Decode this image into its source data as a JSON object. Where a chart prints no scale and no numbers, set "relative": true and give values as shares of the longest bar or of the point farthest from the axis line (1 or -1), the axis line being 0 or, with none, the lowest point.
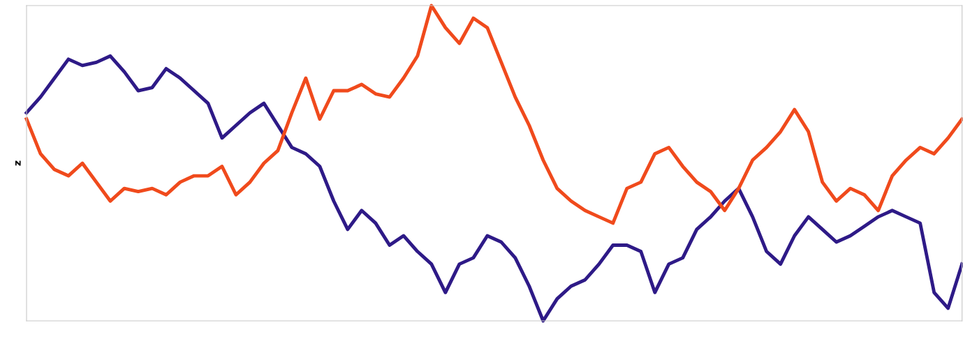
{
  "chart_data": {
    "type": "line",
    "ylabel": "z",
    "relative": true,
    "grid": false,
    "legend": false,
    "marker": "none",
    "line_style": "solid",
    "categories": [
      null,
      null,
      null,
      null,
      null,
      null,
      null,
      null,
      null,
      null,
      null,
      null,
      null,
      null,
      null,
      null,
      null,
      null,
      null,
      null,
      null,
      null,
      null,
      null,
      null,
      null,
      null,
      null,
      null,
      null,
      null,
      null,
      null,
      null,
      null,
      null,
      null,
      null,
      null,
      null,
      null,
      null,
      null,
      null,
      null,
      null,
      null,
      null,
      null,
      null,
      null,
      null,
      null,
      null,
      null,
      null,
      null,
      null,
      null,
      null,
      null,
      null,
      null,
      null,
      null,
      null,
      null,
      null
    ],
    "series": [
      {
        "color": "#2e1a87",
        "values": [
          0.66,
          0.71,
          0.77,
          0.83,
          0.81,
          0.82,
          0.84,
          0.79,
          0.73,
          0.74,
          0.8,
          0.77,
          0.73,
          0.69,
          0.58,
          0.62,
          0.66,
          0.69,
          0.62,
          0.55,
          0.53,
          0.49,
          0.38,
          0.29,
          0.35,
          0.31,
          0.24,
          0.27,
          0.22,
          0.18,
          0.09,
          0.18,
          0.2,
          0.27,
          0.25,
          0.2,
          0.11,
          0.0,
          0.07,
          0.11,
          0.13,
          0.18,
          0.24,
          0.24,
          0.22,
          0.09,
          0.18,
          0.2,
          0.29,
          0.33,
          0.38,
          0.42,
          0.33,
          0.22,
          0.18,
          0.27,
          0.33,
          0.29,
          0.25,
          0.27,
          0.3,
          0.33,
          0.35,
          0.33,
          0.31,
          0.09,
          0.04,
          0.18
        ]
      },
      {
        "color": "#f04a1c",
        "values": [
          0.64,
          0.53,
          0.48,
          0.46,
          0.5,
          0.44,
          0.38,
          0.42,
          0.41,
          0.42,
          0.4,
          0.44,
          0.46,
          0.46,
          0.49,
          0.4,
          0.44,
          0.5,
          0.54,
          0.66,
          0.77,
          0.64,
          0.73,
          0.73,
          0.75,
          0.72,
          0.71,
          0.77,
          0.84,
          1.0,
          0.93,
          0.88,
          0.96,
          0.93,
          0.82,
          0.71,
          0.62,
          0.51,
          0.42,
          0.38,
          0.35,
          0.33,
          0.31,
          0.42,
          0.44,
          0.53,
          0.55,
          0.49,
          0.44,
          0.41,
          0.35,
          0.42,
          0.51,
          0.55,
          0.6,
          0.67,
          0.6,
          0.44,
          0.38,
          0.42,
          0.4,
          0.35,
          0.46,
          0.51,
          0.55,
          0.53,
          0.58,
          0.64
        ]
      }
    ]
  }
}
